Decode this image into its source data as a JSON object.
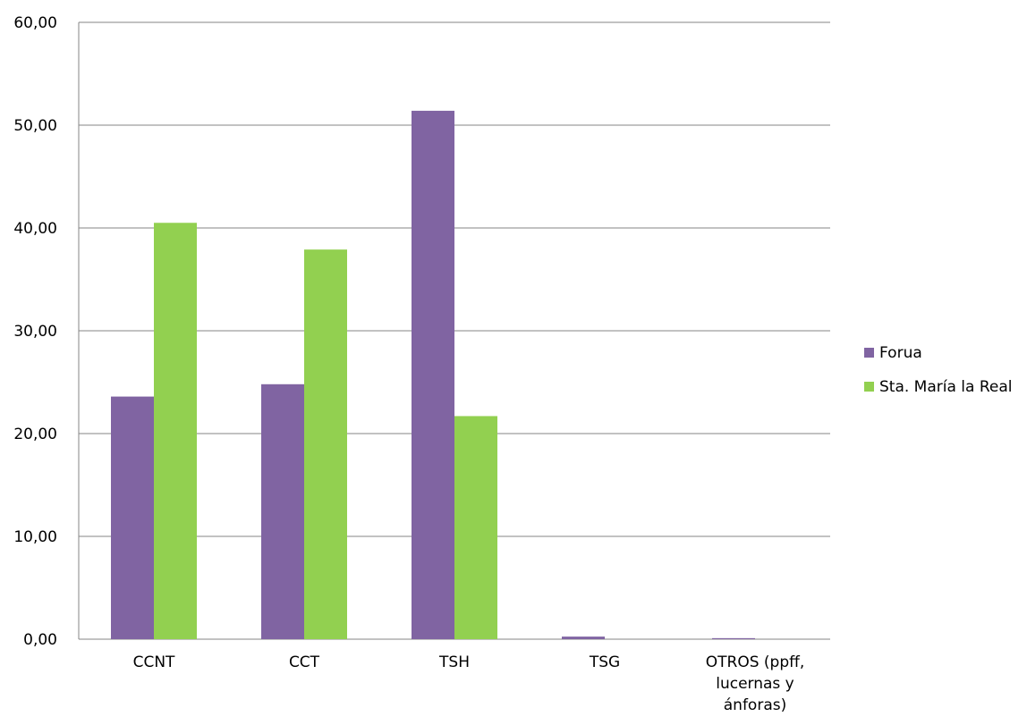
{
  "chart_data": {
    "type": "bar",
    "title": "",
    "xlabel": "",
    "ylabel": "",
    "ylim": [
      0,
      60
    ],
    "ytick_step": 10,
    "ytick_labels": [
      "0,00",
      "10,00",
      "20,00",
      "30,00",
      "40,00",
      "50,00",
      "60,00"
    ],
    "grid": true,
    "legend_position": "right",
    "categories": [
      [
        "CCNT"
      ],
      [
        "CCT"
      ],
      [
        "TSH"
      ],
      [
        "TSG"
      ],
      [
        "OTROS (ppff,",
        "lucernas y",
        "ánforas)"
      ]
    ],
    "series": [
      {
        "name": "Forua",
        "color": "#8064a2",
        "values": [
          23.6,
          24.8,
          51.4,
          0.25,
          0.1
        ]
      },
      {
        "name": "Sta. María la Real",
        "color": "#92d050",
        "values": [
          40.5,
          37.9,
          21.7,
          0,
          0
        ]
      }
    ]
  }
}
